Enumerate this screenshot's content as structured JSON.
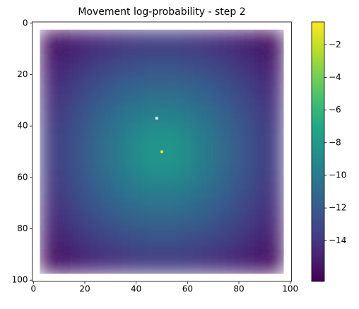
{
  "chart_data": {
    "type": "heatmap",
    "title": "Movement log-probability - step 2",
    "colormap": "viridis",
    "xlim": [
      -0.5,
      100.5
    ],
    "ylim": [
      100.5,
      -0.5
    ],
    "xticks": [
      0,
      20,
      40,
      60,
      80,
      100
    ],
    "yticks": [
      0,
      20,
      40,
      60,
      80,
      100
    ],
    "xbins": [
      2.5,
      12,
      21.5,
      31,
      40.5,
      50,
      59.5,
      69,
      78.5,
      88,
      97.5
    ],
    "ybins": [
      2.5,
      12,
      21.5,
      31,
      40.5,
      50,
      59.5,
      69,
      78.5,
      88,
      97.5
    ],
    "values": [
      [
        -16.0,
        -15.2,
        -14.5,
        -14.0,
        -13.8,
        -13.8,
        -14.0,
        -14.5,
        -15.2,
        -16.0
      ],
      [
        -15.2,
        -14.2,
        -13.4,
        -12.8,
        -12.5,
        -12.5,
        -12.8,
        -13.4,
        -14.2,
        -15.2
      ],
      [
        -14.5,
        -13.4,
        -12.3,
        -11.5,
        -11.0,
        -11.0,
        -11.5,
        -12.3,
        -13.4,
        -14.5
      ],
      [
        -14.0,
        -12.8,
        -11.5,
        -10.4,
        -9.6,
        -9.6,
        -10.4,
        -11.5,
        -12.8,
        -14.0
      ],
      [
        -13.8,
        -12.5,
        -11.0,
        -9.6,
        -8.3,
        -8.3,
        -9.6,
        -11.0,
        -12.5,
        -13.8
      ],
      [
        -13.8,
        -12.5,
        -11.0,
        -9.6,
        -8.3,
        -8.3,
        -9.6,
        -11.0,
        -12.5,
        -13.8
      ],
      [
        -14.0,
        -12.8,
        -11.5,
        -10.4,
        -9.6,
        -9.6,
        -10.4,
        -11.5,
        -12.8,
        -14.0
      ],
      [
        -14.5,
        -13.4,
        -12.3,
        -11.5,
        -11.0,
        -11.0,
        -11.5,
        -12.3,
        -13.4,
        -14.5
      ],
      [
        -15.2,
        -14.2,
        -13.4,
        -12.8,
        -12.5,
        -12.5,
        -12.8,
        -13.4,
        -14.2,
        -15.2
      ],
      [
        -16.0,
        -15.2,
        -14.5,
        -14.0,
        -13.8,
        -13.8,
        -14.0,
        -14.5,
        -15.2,
        -16.0
      ]
    ],
    "peak": {
      "x": 50,
      "y": 50,
      "value": -0.6
    },
    "marker": {
      "x": 48,
      "y": 37,
      "color": "#ffffff"
    },
    "clim": [
      -16.5,
      -0.6
    ],
    "cticks": [
      {
        "value": -14,
        "label": "−14"
      },
      {
        "value": -12,
        "label": "−12"
      },
      {
        "value": -10,
        "label": "−10"
      },
      {
        "value": -8,
        "label": "−8"
      },
      {
        "value": -6,
        "label": "−6"
      },
      {
        "value": -4,
        "label": "−4"
      },
      {
        "value": -2,
        "label": "−2"
      }
    ]
  }
}
